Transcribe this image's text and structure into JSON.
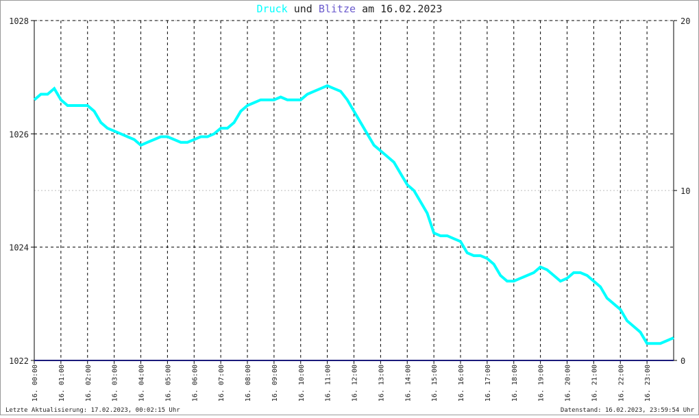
{
  "chart_data": {
    "type": "line",
    "title_connector": "und",
    "title_date": "am 16.02.2023",
    "footer_left": "Letzte Aktualisierung: 17.02.2023, 00:02:15 Uhr",
    "footer_right": "Datenstand: 16.02.2023, 23:59:54 Uhr",
    "xlim": [
      0,
      24
    ],
    "xticks": [
      {
        "value": 0,
        "label": "16. 00:00"
      },
      {
        "value": 1,
        "label": "16. 01:00"
      },
      {
        "value": 2,
        "label": "16. 02:00"
      },
      {
        "value": 3,
        "label": "16. 03:00"
      },
      {
        "value": 4,
        "label": "16. 04:00"
      },
      {
        "value": 5,
        "label": "16. 05:00"
      },
      {
        "value": 6,
        "label": "16. 06:00"
      },
      {
        "value": 7,
        "label": "16. 07:00"
      },
      {
        "value": 8,
        "label": "16. 08:00"
      },
      {
        "value": 9,
        "label": "16. 09:00"
      },
      {
        "value": 10,
        "label": "16. 10:00"
      },
      {
        "value": 11,
        "label": "16. 11:00"
      },
      {
        "value": 12,
        "label": "16. 12:00"
      },
      {
        "value": 13,
        "label": "16. 13:00"
      },
      {
        "value": 14,
        "label": "16. 14:00"
      },
      {
        "value": 15,
        "label": "16. 15:00"
      },
      {
        "value": 16,
        "label": "16. 16:00"
      },
      {
        "value": 17,
        "label": "16. 17:00"
      },
      {
        "value": 18,
        "label": "16. 18:00"
      },
      {
        "value": 19,
        "label": "16. 19:00"
      },
      {
        "value": 20,
        "label": "16. 20:00"
      },
      {
        "value": 21,
        "label": "16. 21:00"
      },
      {
        "value": 22,
        "label": "16. 22:00"
      },
      {
        "value": 23,
        "label": "16. 23:00"
      }
    ],
    "ylim": [
      1022,
      1028
    ],
    "yticks": [
      1022,
      1024,
      1026,
      1028
    ],
    "y2lim": [
      0,
      20
    ],
    "y2ticks": [
      0,
      10,
      20
    ],
    "grid": true,
    "series": [
      {
        "name": "Druck",
        "color": "#00ffff",
        "x": [
          0,
          0.25,
          0.5,
          0.75,
          1,
          1.25,
          1.5,
          1.75,
          2,
          2.25,
          2.5,
          2.75,
          3,
          3.25,
          3.5,
          3.75,
          4,
          4.25,
          4.5,
          4.75,
          5,
          5.25,
          5.5,
          5.75,
          6,
          6.25,
          6.5,
          6.75,
          7,
          7.25,
          7.5,
          7.75,
          8,
          8.25,
          8.5,
          8.75,
          9,
          9.25,
          9.5,
          9.75,
          10,
          10.25,
          10.5,
          10.75,
          11,
          11.25,
          11.5,
          11.75,
          12,
          12.25,
          12.5,
          12.75,
          13,
          13.25,
          13.5,
          13.75,
          14,
          14.25,
          14.5,
          14.75,
          15,
          15.25,
          15.5,
          15.75,
          16,
          16.25,
          16.5,
          16.75,
          17,
          17.25,
          17.5,
          17.75,
          18,
          18.25,
          18.5,
          18.75,
          19,
          19.25,
          19.5,
          19.75,
          20,
          20.25,
          20.5,
          20.75,
          21,
          21.25,
          21.5,
          21.75,
          22,
          22.25,
          22.5,
          22.75,
          23,
          23.25,
          23.5,
          23.75,
          24
        ],
        "values": [
          1026.6,
          1026.7,
          1026.7,
          1026.8,
          1026.6,
          1026.5,
          1026.5,
          1026.5,
          1026.5,
          1026.4,
          1026.2,
          1026.1,
          1026.05,
          1026.0,
          1025.95,
          1025.9,
          1025.8,
          1025.85,
          1025.9,
          1025.95,
          1025.95,
          1025.9,
          1025.85,
          1025.85,
          1025.9,
          1025.95,
          1025.95,
          1026.0,
          1026.1,
          1026.1,
          1026.2,
          1026.4,
          1026.5,
          1026.55,
          1026.6,
          1026.6,
          1026.6,
          1026.65,
          1026.6,
          1026.6,
          1026.6,
          1026.7,
          1026.75,
          1026.8,
          1026.85,
          1026.8,
          1026.75,
          1026.6,
          1026.4,
          1026.2,
          1026.0,
          1025.8,
          1025.7,
          1025.6,
          1025.5,
          1025.3,
          1025.1,
          1025.0,
          1024.8,
          1024.6,
          1024.25,
          1024.2,
          1024.2,
          1024.15,
          1024.1,
          1023.9,
          1023.85,
          1023.85,
          1023.8,
          1023.7,
          1023.5,
          1023.4,
          1023.4,
          1023.45,
          1023.5,
          1023.55,
          1023.65,
          1023.6,
          1023.5,
          1023.4,
          1023.45,
          1023.55,
          1023.55,
          1023.5,
          1023.4,
          1023.3,
          1023.1,
          1023.0,
          1022.9,
          1022.7,
          1022.6,
          1022.5,
          1022.3,
          1022.3,
          1022.3,
          1022.35,
          1022.4
        ]
      },
      {
        "name": "Blitze",
        "color": "#1a1a7a",
        "axis": "y2",
        "x": [
          0,
          24
        ],
        "values": [
          0,
          0
        ]
      }
    ]
  }
}
